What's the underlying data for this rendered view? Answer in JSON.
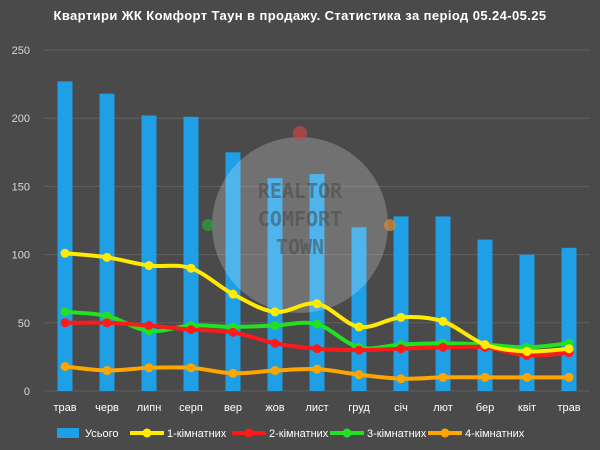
{
  "chart_data": {
    "type": "bar+line",
    "title": "Квартири ЖК Комфорт Таун в продажу. Статистика за період 05.24-05.25",
    "categories": [
      "трав",
      "черв",
      "липн",
      "серп",
      "вер",
      "жов",
      "лист",
      "груд",
      "січ",
      "лют",
      "бер",
      "квіт",
      "трав"
    ],
    "ylim": [
      0,
      250
    ],
    "yticks": [
      0,
      50,
      100,
      150,
      200,
      250
    ],
    "grid": true,
    "legend_position": "bottom",
    "bar_series": {
      "name": "Усього",
      "color": "#1e9fe6",
      "values": [
        227,
        218,
        202,
        201,
        175,
        156,
        159,
        120,
        128,
        128,
        111,
        100,
        105
      ]
    },
    "line_series": [
      {
        "name": "1-кімнатних",
        "color": "#ffea00",
        "values": [
          101,
          98,
          92,
          90,
          71,
          58,
          64,
          47,
          54,
          51,
          34,
          29,
          31
        ]
      },
      {
        "name": "2-кімнатних",
        "color": "#ff1a1a",
        "values": [
          50,
          50,
          48,
          45,
          43,
          35,
          31,
          30,
          31,
          32,
          32,
          26,
          28
        ]
      },
      {
        "name": "3-кімнатних",
        "color": "#22e022",
        "values": [
          58,
          55,
          44,
          48,
          47,
          48,
          49,
          32,
          34,
          35,
          34,
          32,
          35
        ]
      },
      {
        "name": "4-кімнатних",
        "color": "#ffa500",
        "values": [
          18,
          15,
          17,
          17,
          13,
          15,
          16,
          12,
          9,
          10,
          10,
          10,
          10
        ]
      }
    ]
  },
  "watermark": {
    "lines": [
      "REALTOR",
      "COMFORT",
      "TOWN"
    ]
  }
}
